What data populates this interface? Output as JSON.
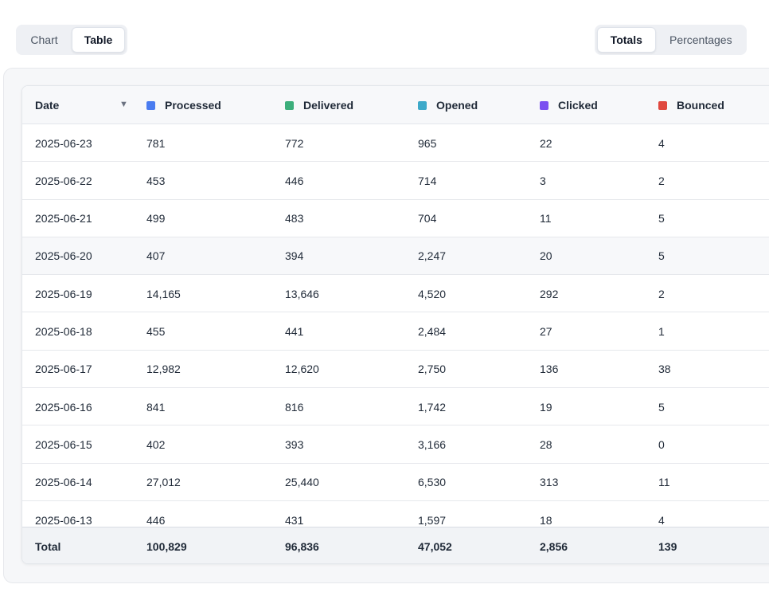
{
  "view_toggle": {
    "options": [
      "Chart",
      "Table"
    ],
    "active": "Table"
  },
  "mode_toggle": {
    "options": [
      "Totals",
      "Percentages"
    ],
    "active": "Totals"
  },
  "columns": [
    {
      "label": "Date",
      "color": null
    },
    {
      "label": "Processed",
      "color": "#4a7cf0"
    },
    {
      "label": "Delivered",
      "color": "#3cae7b"
    },
    {
      "label": "Opened",
      "color": "#3da9c9"
    },
    {
      "label": "Clicked",
      "color": "#7b4ff0"
    },
    {
      "label": "Bounced",
      "color": "#e0483f"
    }
  ],
  "sort_icon": "sort-desc-icon",
  "rows": [
    [
      "2025-06-23",
      "781",
      "772",
      "965",
      "22",
      "4"
    ],
    [
      "2025-06-22",
      "453",
      "446",
      "714",
      "3",
      "2"
    ],
    [
      "2025-06-21",
      "499",
      "483",
      "704",
      "11",
      "5"
    ],
    [
      "2025-06-20",
      "407",
      "394",
      "2,247",
      "20",
      "5"
    ],
    [
      "2025-06-19",
      "14,165",
      "13,646",
      "4,520",
      "292",
      "2"
    ],
    [
      "2025-06-18",
      "455",
      "441",
      "2,484",
      "27",
      "1"
    ],
    [
      "2025-06-17",
      "12,982",
      "12,620",
      "2,750",
      "136",
      "38"
    ],
    [
      "2025-06-16",
      "841",
      "816",
      "1,742",
      "19",
      "5"
    ],
    [
      "2025-06-15",
      "402",
      "393",
      "3,166",
      "28",
      "0"
    ],
    [
      "2025-06-14",
      "27,012",
      "25,440",
      "6,530",
      "313",
      "11"
    ],
    [
      "2025-06-13",
      "446",
      "431",
      "1,597",
      "18",
      "4"
    ]
  ],
  "totals": [
    "Total",
    "100,829",
    "96,836",
    "47,052",
    "2,856",
    "139"
  ]
}
